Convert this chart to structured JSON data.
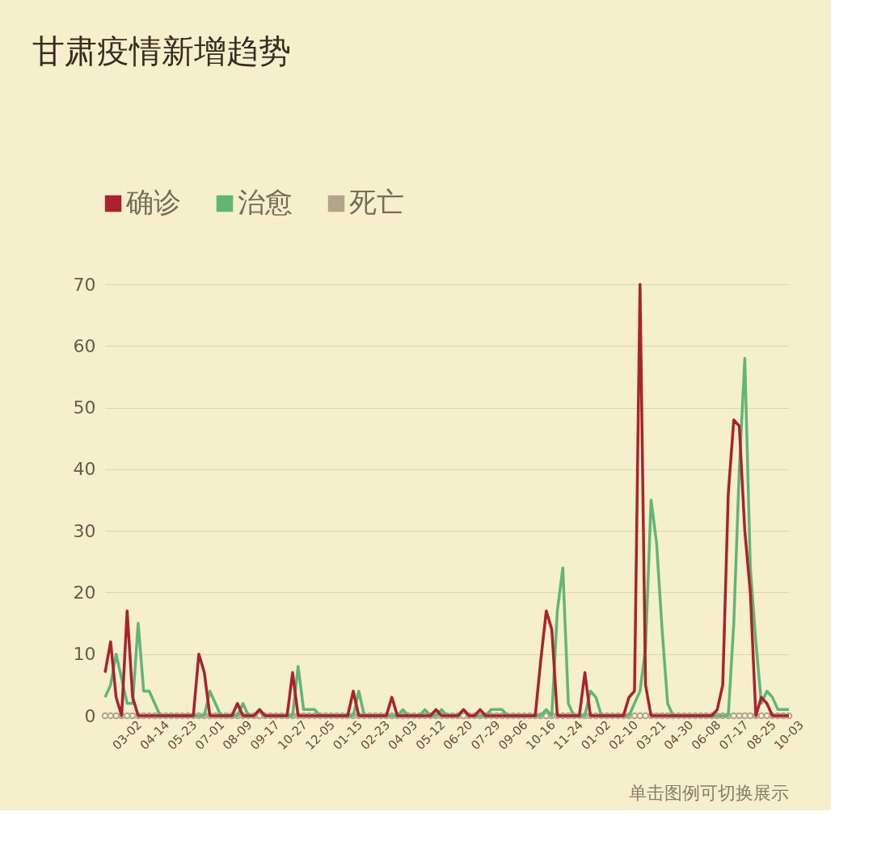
{
  "chart_data": {
    "type": "line",
    "title": "甘肃疫情新增趋势",
    "categories": [
      null,
      null,
      null,
      null,
      "03-02",
      null,
      null,
      null,
      null,
      "04-14",
      null,
      null,
      null,
      null,
      "05-23",
      null,
      null,
      null,
      null,
      "07-01",
      null,
      null,
      null,
      null,
      "08-09",
      null,
      null,
      null,
      null,
      "09-17",
      null,
      null,
      null,
      null,
      "10-27",
      null,
      null,
      null,
      null,
      "12-05",
      null,
      null,
      null,
      null,
      "01-15",
      null,
      null,
      null,
      null,
      "02-23",
      null,
      null,
      null,
      null,
      "04-03",
      null,
      null,
      null,
      null,
      "05-12",
      null,
      null,
      null,
      null,
      "06-20",
      null,
      null,
      null,
      null,
      "07-29",
      null,
      null,
      null,
      null,
      "09-06",
      null,
      null,
      null,
      null,
      "10-16",
      null,
      null,
      null,
      null,
      "11-24",
      null,
      null,
      null,
      null,
      "01-02",
      null,
      null,
      null,
      null,
      "02-10",
      null,
      null,
      null,
      null,
      "03-21",
      null,
      null,
      null,
      null,
      "04-30",
      null,
      null,
      null,
      null,
      "06-08",
      null,
      null,
      null,
      null,
      "07-17",
      null,
      null,
      null,
      null,
      "08-25",
      null,
      null,
      null,
      null,
      "10-03"
    ],
    "series": [
      {
        "name": "确诊",
        "color": "#a8232e",
        "values": [
          7,
          12,
          3,
          0,
          17,
          3,
          0,
          0,
          0,
          0,
          0,
          0,
          0,
          0,
          0,
          0,
          0,
          10,
          7,
          0,
          0,
          0,
          0,
          0,
          2,
          0,
          0,
          0,
          1,
          0,
          0,
          0,
          0,
          0,
          7,
          0,
          0,
          0,
          0,
          0,
          0,
          0,
          0,
          0,
          0,
          4,
          0,
          0,
          0,
          0,
          0,
          0,
          3,
          0,
          0,
          0,
          0,
          0,
          0,
          0,
          1,
          0,
          0,
          0,
          0,
          1,
          0,
          0,
          1,
          0,
          0,
          0,
          0,
          0,
          0,
          0,
          0,
          0,
          0,
          9,
          17,
          14,
          0,
          0,
          0,
          0,
          0,
          7,
          0,
          0,
          0,
          0,
          0,
          0,
          0,
          3,
          4,
          70,
          5,
          0,
          0,
          0,
          0,
          0,
          0,
          0,
          0,
          0,
          0,
          0,
          0,
          1,
          5,
          36,
          48,
          47,
          30,
          20,
          0,
          3,
          2,
          0,
          0,
          0,
          0
        ]
      },
      {
        "name": "治愈",
        "color": "#62b575",
        "values": [
          3,
          5,
          10,
          6,
          2,
          2,
          15,
          4,
          4,
          2,
          0,
          0,
          0,
          0,
          0,
          0,
          0,
          0,
          0,
          4,
          2,
          0,
          0,
          0,
          0,
          2,
          0,
          0,
          1,
          0,
          0,
          0,
          0,
          0,
          0,
          8,
          1,
          1,
          1,
          0,
          0,
          0,
          0,
          0,
          0,
          0,
          4,
          0,
          0,
          0,
          0,
          0,
          0,
          0,
          1,
          0,
          0,
          0,
          1,
          0,
          0,
          1,
          0,
          0,
          0,
          1,
          0,
          0,
          0,
          0,
          1,
          1,
          1,
          0,
          0,
          0,
          0,
          0,
          0,
          0,
          1,
          0,
          17,
          24,
          2,
          0,
          0,
          0,
          4,
          3,
          0,
          0,
          0,
          0,
          0,
          0,
          2,
          4,
          11,
          35,
          28,
          14,
          2,
          0,
          0,
          0,
          0,
          0,
          0,
          0,
          0,
          0,
          0,
          0,
          15,
          40,
          58,
          24,
          12,
          2,
          4,
          3,
          1,
          1,
          1
        ]
      },
      {
        "name": "死亡",
        "color": "#b3a58c",
        "marker": "circle",
        "values": [
          0,
          0,
          0,
          0,
          0,
          0,
          0,
          0,
          0,
          0,
          0,
          0,
          0,
          0,
          0,
          0,
          0,
          0,
          0,
          0,
          0,
          0,
          0,
          0,
          0,
          0,
          0,
          0,
          0,
          0,
          0,
          0,
          0,
          0,
          0,
          0,
          0,
          0,
          0,
          0,
          0,
          0,
          0,
          0,
          0,
          0,
          0,
          0,
          0,
          0,
          0,
          0,
          0,
          0,
          0,
          0,
          0,
          0,
          0,
          0,
          0,
          0,
          0,
          0,
          0,
          0,
          0,
          0,
          0,
          0,
          0,
          0,
          0,
          0,
          0,
          0,
          0,
          0,
          0,
          0,
          0,
          0,
          0,
          0,
          0,
          0,
          0,
          0,
          0,
          0,
          0,
          0,
          0,
          0,
          0,
          0,
          0,
          0,
          0,
          0,
          0,
          0,
          0,
          0,
          0,
          0,
          0,
          0,
          0,
          0,
          0,
          0,
          0,
          0,
          0,
          0,
          0,
          0,
          0,
          0,
          0,
          0,
          0,
          0,
          0
        ]
      }
    ],
    "ylim": [
      0,
      70
    ],
    "yticks": [
      0,
      10,
      20,
      30,
      40,
      50,
      60,
      70
    ],
    "grid": "y",
    "legend": "top left",
    "line_style": "solid",
    "annotations": [
      "单击图例可切换展示"
    ]
  }
}
